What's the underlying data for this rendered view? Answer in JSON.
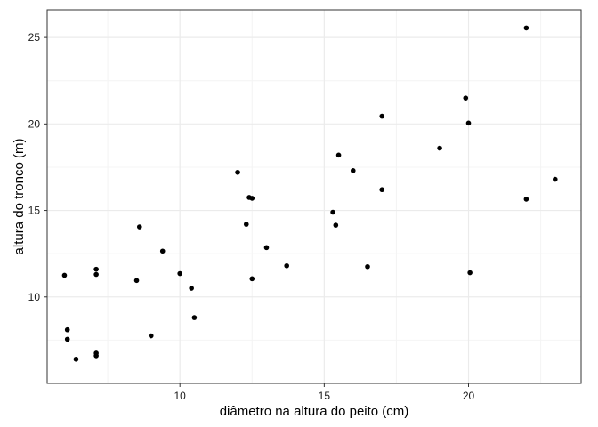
{
  "chart_data": {
    "type": "scatter",
    "xlabel": "diâmetro na altura do peito (cm)",
    "ylabel": "altura do tronco (m)",
    "xlim": [
      5.4,
      23.9
    ],
    "ylim": [
      5.0,
      26.6
    ],
    "x_ticks": [
      10,
      15,
      20
    ],
    "y_ticks": [
      10,
      15,
      20,
      25
    ],
    "grid": true,
    "colors": {
      "points": "#000000",
      "grid": "#ebebeb",
      "minor_grid": "#f4f4f4",
      "frame": "#333333",
      "background": "#ffffff"
    },
    "points": [
      {
        "x": 6.0,
        "y": 11.25
      },
      {
        "x": 6.1,
        "y": 8.1
      },
      {
        "x": 6.1,
        "y": 7.55
      },
      {
        "x": 6.4,
        "y": 6.4
      },
      {
        "x": 7.1,
        "y": 11.6
      },
      {
        "x": 7.1,
        "y": 11.3
      },
      {
        "x": 7.1,
        "y": 6.75
      },
      {
        "x": 7.1,
        "y": 6.6
      },
      {
        "x": 8.5,
        "y": 10.95
      },
      {
        "x": 8.6,
        "y": 14.05
      },
      {
        "x": 9.0,
        "y": 7.75
      },
      {
        "x": 9.4,
        "y": 12.65
      },
      {
        "x": 10.0,
        "y": 11.35
      },
      {
        "x": 10.4,
        "y": 10.5
      },
      {
        "x": 10.5,
        "y": 8.8
      },
      {
        "x": 12.0,
        "y": 17.2
      },
      {
        "x": 12.3,
        "y": 14.2
      },
      {
        "x": 12.4,
        "y": 15.75
      },
      {
        "x": 12.5,
        "y": 15.7
      },
      {
        "x": 12.5,
        "y": 11.05
      },
      {
        "x": 13.0,
        "y": 12.85
      },
      {
        "x": 13.7,
        "y": 11.8
      },
      {
        "x": 15.3,
        "y": 14.9
      },
      {
        "x": 15.4,
        "y": 14.15
      },
      {
        "x": 15.5,
        "y": 18.2
      },
      {
        "x": 16.0,
        "y": 17.3
      },
      {
        "x": 16.5,
        "y": 11.75
      },
      {
        "x": 17.0,
        "y": 20.45
      },
      {
        "x": 17.0,
        "y": 16.2
      },
      {
        "x": 19.0,
        "y": 18.6
      },
      {
        "x": 19.9,
        "y": 21.5
      },
      {
        "x": 20.0,
        "y": 20.05
      },
      {
        "x": 20.05,
        "y": 11.4
      },
      {
        "x": 22.0,
        "y": 25.55
      },
      {
        "x": 22.0,
        "y": 15.65
      },
      {
        "x": 23.0,
        "y": 16.8
      }
    ]
  }
}
